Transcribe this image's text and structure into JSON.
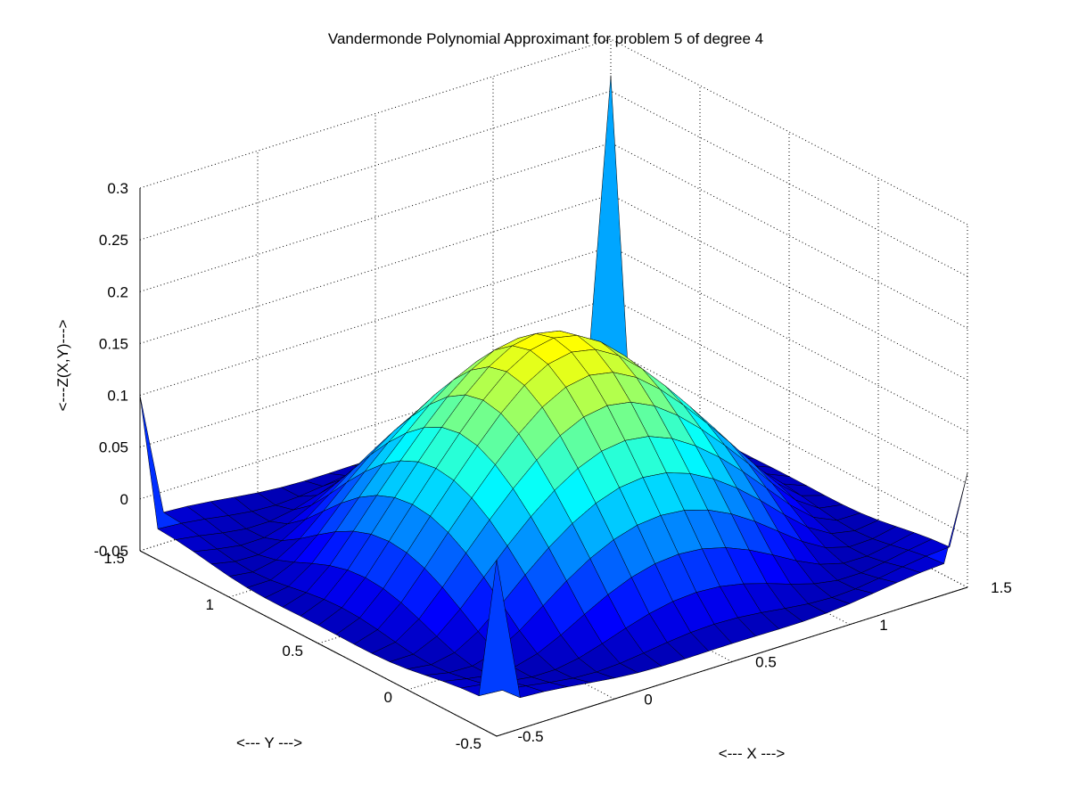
{
  "chart_data": {
    "type": "surface",
    "title": "Vandermonde Polynomial Approximant for problem 5 of degree 4",
    "xlabel": "<--- X --->",
    "ylabel": "<--- Y --->",
    "zlabel": "<---Z(X,Y)--->",
    "xlim": [
      -0.5,
      1.5
    ],
    "ylim": [
      -0.5,
      1.5
    ],
    "zlim": [
      -0.05,
      0.3
    ],
    "x_ticks": [
      "-0.5",
      "0",
      "0.5",
      "1",
      "1.5"
    ],
    "y_ticks": [
      "-0.5",
      "0",
      "0.5",
      "1",
      "1.5"
    ],
    "z_ticks": [
      "-0.05",
      "0",
      "0.05",
      "0.1",
      "0.15",
      "0.2",
      "0.25",
      "0.3"
    ],
    "surface_domain": {
      "x": [
        -0.5,
        1.5
      ],
      "y": [
        -0.5,
        1.5
      ]
    },
    "grid_points_per_axis": 21,
    "surface_model": {
      "peak_center": [
        0.5,
        0.5
      ],
      "peak_height": 0.193,
      "peak_width": 0.45,
      "base_level": -0.02,
      "ring_depth": -0.03
    },
    "spikes": [
      {
        "x": 1.5,
        "y": 1.5,
        "z": 0.265
      },
      {
        "x": -0.5,
        "y": 1.5,
        "z": 0.1
      },
      {
        "x": 1.5,
        "y": -0.5,
        "z": 0.06
      },
      {
        "x": -0.5,
        "y": -0.5,
        "z": 0.12
      }
    ],
    "colormap": "jet",
    "grid": true,
    "view": "3d default (azimuth -37.5, elevation 30)"
  }
}
